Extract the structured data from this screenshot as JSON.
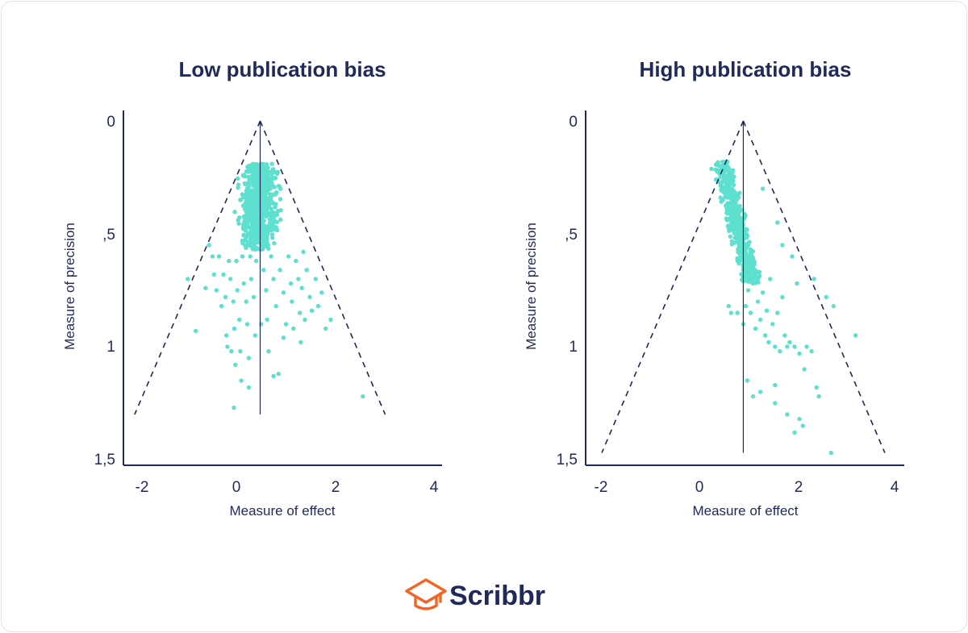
{
  "brand": {
    "name": "Scribbr",
    "logo_color": "#f26522",
    "text_color": "#1f2a5a"
  },
  "colors": {
    "axis": "#1f2a5a",
    "points": "#5ee0cf",
    "funnel": "#1f2a5a"
  },
  "chart_data": [
    {
      "type": "scatter",
      "title": "Low publication bias",
      "xlabel": "Measure of effect",
      "ylabel": "Measure of precision",
      "xlim": [
        -2.2,
        4.2
      ],
      "ylim": [
        0,
        1.5
      ],
      "y_inverted": true,
      "x_ticks": [
        "-2",
        "0",
        "2",
        "4"
      ],
      "y_ticks": [
        "0",
        ",5",
        "1",
        "1,5"
      ],
      "funnel": {
        "apex": [
          0.48,
          0
        ],
        "base_left": [
          -2.05,
          1.3
        ],
        "base_right": [
          3.0,
          1.3
        ],
        "style": "dashed"
      },
      "reference_line": {
        "x": 0.48,
        "y_from": 0,
        "y_to": 1.3
      },
      "seed": 7,
      "dense_cluster": {
        "count": 650,
        "x_center": 0.45,
        "x_spread": 0.95,
        "y_min": 0.19,
        "y_max": 0.57
      },
      "sparse_points": [
        [
          -0.98,
          0.7
        ],
        [
          -0.82,
          0.93
        ],
        [
          -0.62,
          0.74
        ],
        [
          -0.55,
          0.55
        ],
        [
          -0.48,
          0.6
        ],
        [
          -0.45,
          0.68
        ],
        [
          -0.4,
          0.75
        ],
        [
          -0.35,
          0.6
        ],
        [
          -0.3,
          0.82
        ],
        [
          -0.26,
          0.68
        ],
        [
          -0.22,
          0.78
        ],
        [
          -0.2,
          0.95
        ],
        [
          -0.18,
          1.0
        ],
        [
          -0.15,
          0.62
        ],
        [
          -0.12,
          0.7
        ],
        [
          -0.1,
          1.02
        ],
        [
          -0.06,
          0.8
        ],
        [
          -0.04,
          0.92
        ],
        [
          -0.02,
          1.08
        ],
        [
          0.0,
          0.62
        ],
        [
          0.02,
          0.75
        ],
        [
          0.06,
          0.88
        ],
        [
          0.08,
          1.02
        ],
        [
          0.1,
          1.15
        ],
        [
          0.12,
          0.6
        ],
        [
          0.15,
          0.72
        ],
        [
          0.2,
          0.8
        ],
        [
          0.22,
          0.9
        ],
        [
          0.25,
          1.05
        ],
        [
          0.28,
          0.6
        ],
        [
          0.3,
          0.7
        ],
        [
          0.35,
          0.78
        ],
        [
          0.38,
          0.95
        ],
        [
          0.4,
          0.62
        ],
        [
          0.55,
          0.66
        ],
        [
          0.6,
          0.75
        ],
        [
          0.62,
          0.88
        ],
        [
          0.65,
          1.02
        ],
        [
          0.7,
          0.6
        ],
        [
          0.75,
          0.7
        ],
        [
          0.8,
          0.82
        ],
        [
          0.85,
          1.12
        ],
        [
          0.88,
          0.66
        ],
        [
          0.95,
          0.76
        ],
        [
          1.0,
          0.9
        ],
        [
          1.05,
          0.6
        ],
        [
          1.1,
          0.72
        ],
        [
          1.12,
          0.8
        ],
        [
          1.15,
          0.92
        ],
        [
          1.2,
          0.62
        ],
        [
          1.25,
          0.7
        ],
        [
          1.28,
          0.85
        ],
        [
          1.32,
          0.74
        ],
        [
          1.35,
          0.58
        ],
        [
          1.38,
          0.88
        ],
        [
          1.42,
          0.66
        ],
        [
          1.48,
          0.78
        ],
        [
          1.52,
          0.84
        ],
        [
          1.6,
          0.7
        ],
        [
          1.65,
          0.82
        ],
        [
          1.72,
          0.76
        ],
        [
          1.8,
          0.92
        ],
        [
          1.9,
          0.88
        ],
        [
          2.55,
          1.22
        ],
        [
          0.75,
          1.13
        ],
        [
          -0.05,
          1.27
        ],
        [
          0.95,
          0.96
        ],
        [
          1.3,
          0.98
        ],
        [
          0.5,
          0.9
        ],
        [
          0.25,
          1.18
        ]
      ]
    },
    {
      "type": "scatter",
      "title": "High publication bias",
      "xlabel": "Measure of effect",
      "ylabel": "Measure of precision",
      "xlim": [
        -2.2,
        4.2
      ],
      "ylim": [
        0,
        1.5
      ],
      "y_inverted": true,
      "x_ticks": [
        "-2",
        "0",
        "2",
        "4"
      ],
      "y_ticks": [
        "0",
        ",5",
        "1",
        "1,5"
      ],
      "funnel": {
        "apex": [
          0.9,
          0
        ],
        "base_left": [
          -2.0,
          1.47
        ],
        "base_right": [
          3.8,
          1.47
        ],
        "style": "dashed"
      },
      "reference_line": {
        "x": 0.9,
        "y_from": 0,
        "y_to": 1.47
      },
      "seed": 19,
      "dense_cluster": {
        "count": 520,
        "x_center": 0.45,
        "x_slope": 1.2,
        "x_spread": 0.5,
        "y_min": 0.18,
        "y_max": 0.72
      },
      "sparse_points": [
        [
          0.78,
          0.85
        ],
        [
          0.9,
          0.9
        ],
        [
          0.95,
          0.82
        ],
        [
          1.0,
          0.75
        ],
        [
          1.05,
          0.85
        ],
        [
          1.1,
          0.72
        ],
        [
          1.15,
          0.92
        ],
        [
          1.2,
          0.8
        ],
        [
          1.25,
          0.88
        ],
        [
          1.3,
          0.76
        ],
        [
          1.35,
          0.95
        ],
        [
          1.38,
          0.84
        ],
        [
          1.42,
          0.98
        ],
        [
          1.45,
          0.7
        ],
        [
          1.5,
          0.9
        ],
        [
          1.55,
          1.0
        ],
        [
          1.6,
          0.85
        ],
        [
          1.65,
          1.02
        ],
        [
          1.7,
          0.78
        ],
        [
          1.75,
          0.95
        ],
        [
          1.8,
          1.0
        ],
        [
          1.85,
          0.98
        ],
        [
          1.95,
          1.0
        ],
        [
          2.05,
          1.03
        ],
        [
          2.15,
          1.1
        ],
        [
          2.3,
          1.02
        ],
        [
          2.4,
          1.18
        ],
        [
          2.45,
          1.22
        ],
        [
          2.6,
          0.78
        ],
        [
          2.75,
          0.82
        ],
        [
          3.2,
          0.95
        ],
        [
          2.2,
          1.0
        ],
        [
          1.55,
          1.25
        ],
        [
          1.8,
          1.3
        ],
        [
          2.05,
          1.32
        ],
        [
          2.12,
          1.35
        ],
        [
          1.95,
          1.38
        ],
        [
          2.7,
          1.47
        ],
        [
          1.25,
          1.2
        ],
        [
          0.98,
          1.15
        ],
        [
          1.1,
          1.22
        ],
        [
          1.55,
          1.17
        ],
        [
          0.6,
          0.82
        ],
        [
          0.65,
          0.85
        ],
        [
          1.9,
          0.6
        ],
        [
          2.0,
          0.72
        ],
        [
          2.35,
          0.7
        ],
        [
          1.7,
          0.55
        ],
        [
          1.3,
          0.3
        ],
        [
          1.6,
          0.45
        ]
      ]
    }
  ]
}
